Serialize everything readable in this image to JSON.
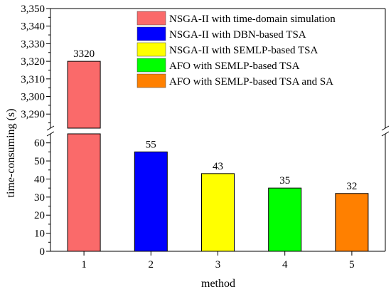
{
  "chart_data": {
    "type": "bar",
    "categories": [
      "1",
      "2",
      "3",
      "4",
      "5"
    ],
    "values": [
      3320,
      55,
      43,
      35,
      32
    ],
    "data_labels": [
      "3320",
      "55",
      "43",
      "35",
      "32"
    ],
    "colors": [
      "#fa6a6a",
      "#0000ff",
      "#ffff00",
      "#00ff00",
      "#ff8000"
    ],
    "xlabel": "method",
    "ylabel": "time-consuming (s)",
    "y_axis_break": true,
    "ylim_lower": [
      0,
      65
    ],
    "ylim_upper": [
      3282,
      3350
    ],
    "yticks_lower": [
      "0",
      "10",
      "20",
      "30",
      "40",
      "50",
      "60"
    ],
    "yticks_upper": [
      "3,290",
      "3,300",
      "3,310",
      "3,320",
      "3,330",
      "3,340",
      "3,350"
    ],
    "legend_position": "top-right",
    "legend": [
      {
        "label": "NSGA-II with time-domain simulation",
        "color": "#fa6a6a"
      },
      {
        "label": "NSGA-II with DBN-based TSA",
        "color": "#0000ff"
      },
      {
        "label": "NSGA-II with SEMLP-based TSA",
        "color": "#ffff00"
      },
      {
        "label": "AFO with SEMLP-based TSA",
        "color": "#00ff00"
      },
      {
        "label": "AFO with SEMLP-based TSA and SA",
        "color": "#ff8000"
      }
    ]
  }
}
